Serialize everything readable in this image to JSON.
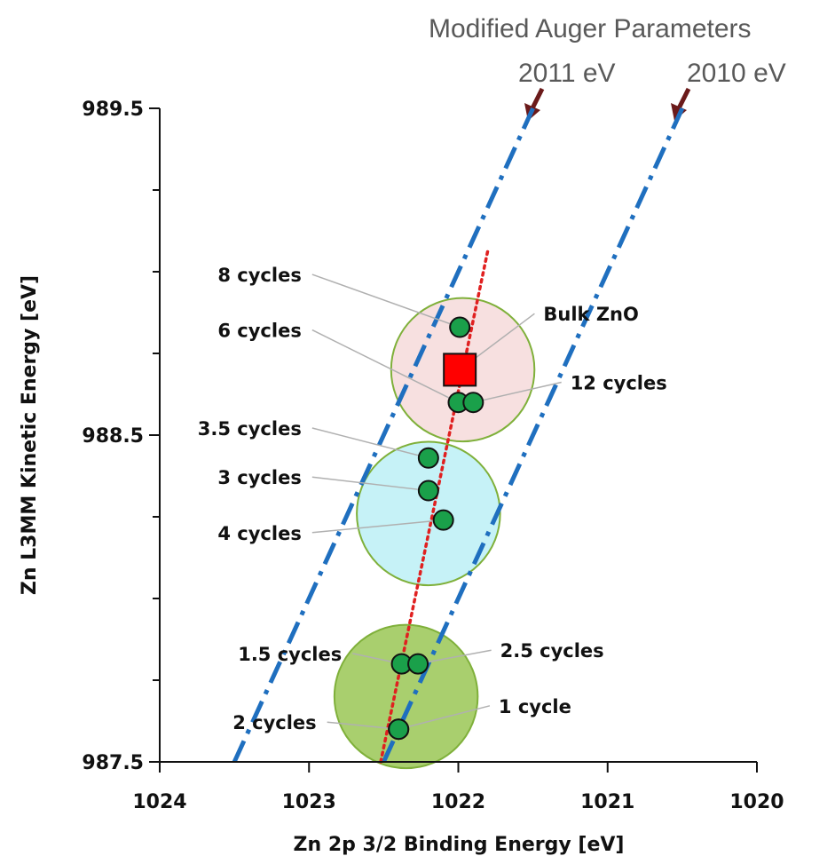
{
  "chart_data": {
    "type": "scatter",
    "xlabel": "Zn 2p 3/2 Binding Energy [eV]",
    "ylabel": "Zn L3MM Kinetic Energy [eV]",
    "x_reversed": true,
    "xlim": [
      1024,
      1020
    ],
    "ylim": [
      987.5,
      989.5
    ],
    "x_ticks": [
      "1024",
      "1023",
      "1022",
      "1021",
      "1020"
    ],
    "y_ticks": [
      "987.5",
      "988.5",
      "989.5"
    ],
    "header": {
      "line1": "Modified Auger Parameters",
      "label_2011": "2011 eV",
      "label_2010": "2010 eV"
    },
    "reference_lines": [
      {
        "label": "2011 eV",
        "style": "dash-dot",
        "color": "#1f6fbf",
        "x_range": [
          1023.5,
          1021.5
        ]
      },
      {
        "label": "2010 eV",
        "style": "dash-dot",
        "color": "#1f6fbf",
        "x_range": [
          1022.5,
          1020.5
        ]
      }
    ],
    "trend_line": {
      "style": "dotted",
      "color": "#e02020",
      "points": [
        [
          1022.52,
          987.5
        ],
        [
          1021.8,
          989.07
        ]
      ]
    },
    "groups": [
      {
        "color": "#f7e0e0",
        "center": [
          1021.97,
          988.7
        ],
        "radius_x": 0.48
      },
      {
        "color": "#c6f2f7",
        "center": [
          1022.2,
          988.26
        ],
        "radius_x": 0.48
      },
      {
        "color": "#a9cf6e",
        "center": [
          1022.35,
          987.7
        ],
        "radius_x": 0.48
      }
    ],
    "points": [
      {
        "label": "8 cycles",
        "x": 1021.99,
        "y": 988.83,
        "marker": "circle"
      },
      {
        "label": "Bulk ZnO",
        "x": 1021.99,
        "y": 988.7,
        "marker": "square"
      },
      {
        "label": "6 cycles",
        "x": 1022.0,
        "y": 988.6,
        "marker": "circle"
      },
      {
        "label": "12 cycles",
        "x": 1021.9,
        "y": 988.6,
        "marker": "circle"
      },
      {
        "label": "3.5 cycles",
        "x": 1022.2,
        "y": 988.43,
        "marker": "circle"
      },
      {
        "label": "3 cycles",
        "x": 1022.2,
        "y": 988.33,
        "marker": "circle"
      },
      {
        "label": "4 cycles",
        "x": 1022.1,
        "y": 988.24,
        "marker": "circle"
      },
      {
        "label": "1.5 cycles",
        "x": 1022.38,
        "y": 987.8,
        "marker": "circle"
      },
      {
        "label": "2.5 cycles",
        "x": 1022.27,
        "y": 987.8,
        "marker": "circle"
      },
      {
        "label": "2 cycles",
        "x": 1022.4,
        "y": 987.6,
        "marker": "circle"
      },
      {
        "label": "1 cycle",
        "x": 1022.4,
        "y": 987.6,
        "marker": "circle"
      }
    ],
    "annotations": [
      {
        "text": "8 cycles",
        "target": 0,
        "anchor": "end",
        "tx": 1023.05,
        "ty": 988.97
      },
      {
        "text": "Bulk ZnO",
        "target": 1,
        "anchor": "start",
        "tx": 1021.43,
        "ty": 988.85
      },
      {
        "text": "6 cycles",
        "target": 2,
        "anchor": "end",
        "tx": 1023.05,
        "ty": 988.8
      },
      {
        "text": "12 cycles",
        "target": 3,
        "anchor": "start",
        "tx": 1021.25,
        "ty": 988.64
      },
      {
        "text": "3.5 cycles",
        "target": 4,
        "anchor": "end",
        "tx": 1023.05,
        "ty": 988.5
      },
      {
        "text": "3 cycles",
        "target": 5,
        "anchor": "end",
        "tx": 1023.05,
        "ty": 988.35
      },
      {
        "text": "4 cycles",
        "target": 6,
        "anchor": "end",
        "tx": 1023.05,
        "ty": 988.18
      },
      {
        "text": "1.5 cycles",
        "target": 7,
        "anchor": "end",
        "tx": 1022.78,
        "ty": 987.81
      },
      {
        "text": "2.5 cycles",
        "target": 8,
        "anchor": "start",
        "tx": 1021.72,
        "ty": 987.82
      },
      {
        "text": "2 cycles",
        "target": 9,
        "anchor": "end",
        "tx": 1022.95,
        "ty": 987.6
      },
      {
        "text": "1 cycle",
        "target": 10,
        "anchor": "start",
        "tx": 1021.73,
        "ty": 987.65
      }
    ],
    "colors": {
      "point_fill": "#1aa04a",
      "square_fill": "#ff0000",
      "arrow": "#6b1a1a",
      "circle_stroke": "#7fb03a"
    }
  }
}
